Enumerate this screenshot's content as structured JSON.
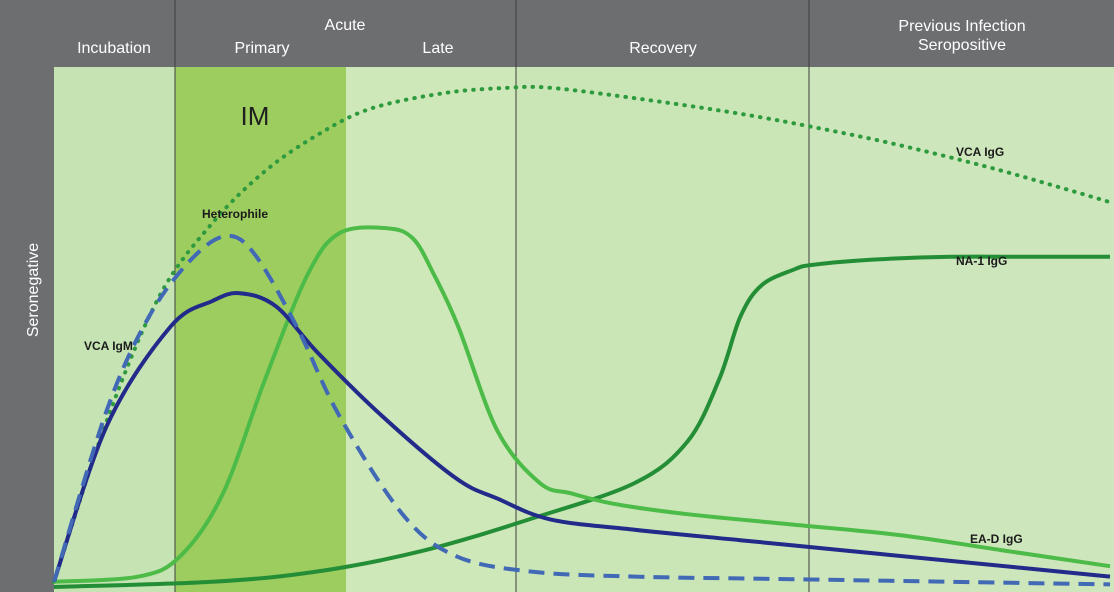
{
  "chart_data": {
    "type": "line",
    "title": "",
    "xlabel": "",
    "ylabel": "Seronegative",
    "grid": false,
    "legend": "none",
    "phases": [
      {
        "name": "Incubation"
      },
      {
        "name": "Primary",
        "group": "Acute"
      },
      {
        "name": "Late",
        "group": "Acute"
      },
      {
        "name": "Recovery"
      },
      {
        "name": "Previous Infection Seropositive"
      }
    ],
    "header_labels": {
      "incubation": "Incubation",
      "acute": "Acute",
      "primary": "Primary",
      "late": "Late",
      "recovery": "Recovery",
      "previous_line1": "Previous Infection",
      "previous_line2": "Seropositive"
    },
    "highlight_label": "IM",
    "x_range": [
      0,
      100
    ],
    "y_range": [
      0,
      100
    ],
    "series": [
      {
        "key": "vca_igg",
        "name": "VCA IgG",
        "style": "dotted",
        "color": "#2e9a3e",
        "x": [
          0,
          5,
          10,
          15,
          20,
          25,
          30,
          37,
          43,
          47,
          55,
          65,
          73,
          80,
          88,
          95,
          100
        ],
        "y": [
          1,
          32,
          56,
          70,
          80,
          87,
          92,
          95,
          96,
          96,
          94,
          91,
          88,
          85,
          81,
          77,
          74
        ]
      },
      {
        "key": "heterophile",
        "name": "Heterophile",
        "style": "dashed",
        "color": "#4169b5",
        "x": [
          0,
          5,
          9,
          13,
          16.3,
          19,
          23,
          27,
          33,
          38,
          45,
          55,
          70,
          85,
          100
        ],
        "y": [
          1,
          34,
          52,
          63,
          67.5,
          64,
          50,
          33,
          14,
          6,
          3,
          2,
          1.5,
          1,
          0.5
        ]
      },
      {
        "key": "vca_igm",
        "name": "VCA IgM",
        "style": "solid",
        "color": "#222a8a",
        "x": [
          0,
          5,
          11,
          15,
          17.6,
          21,
          25,
          31,
          38,
          42,
          47,
          55,
          65,
          75,
          85,
          100
        ],
        "y": [
          1,
          31,
          50,
          55,
          56.5,
          54,
          45,
          33,
          21,
          17,
          13,
          11,
          9,
          7,
          5,
          2
        ]
      },
      {
        "key": "ea_d_igg",
        "name": "EA-D IgG",
        "style": "solid",
        "color": "#4cbb47",
        "x": [
          0,
          8,
          12,
          16,
          20,
          24,
          27,
          31.5,
          34,
          36,
          38.3,
          42,
          46,
          49,
          53,
          60,
          70,
          80,
          90,
          100
        ],
        "y": [
          1,
          2,
          6,
          18,
          40,
          60,
          68,
          69,
          67,
          60,
          50,
          30,
          20,
          18,
          16,
          14,
          12,
          10,
          7,
          4
        ]
      },
      {
        "key": "na1_igg",
        "name": "NA-1 IgG",
        "style": "solid",
        "color": "#238e35",
        "x": [
          0,
          15,
          25,
          35,
          45,
          55,
          60,
          63,
          65,
          67,
          70,
          72,
          78,
          85,
          92,
          100
        ],
        "y": [
          0,
          1,
          3,
          7,
          13,
          20,
          28,
          40,
          52,
          58,
          61,
          62,
          63,
          63.5,
          63.5,
          63.5
        ]
      }
    ]
  }
}
